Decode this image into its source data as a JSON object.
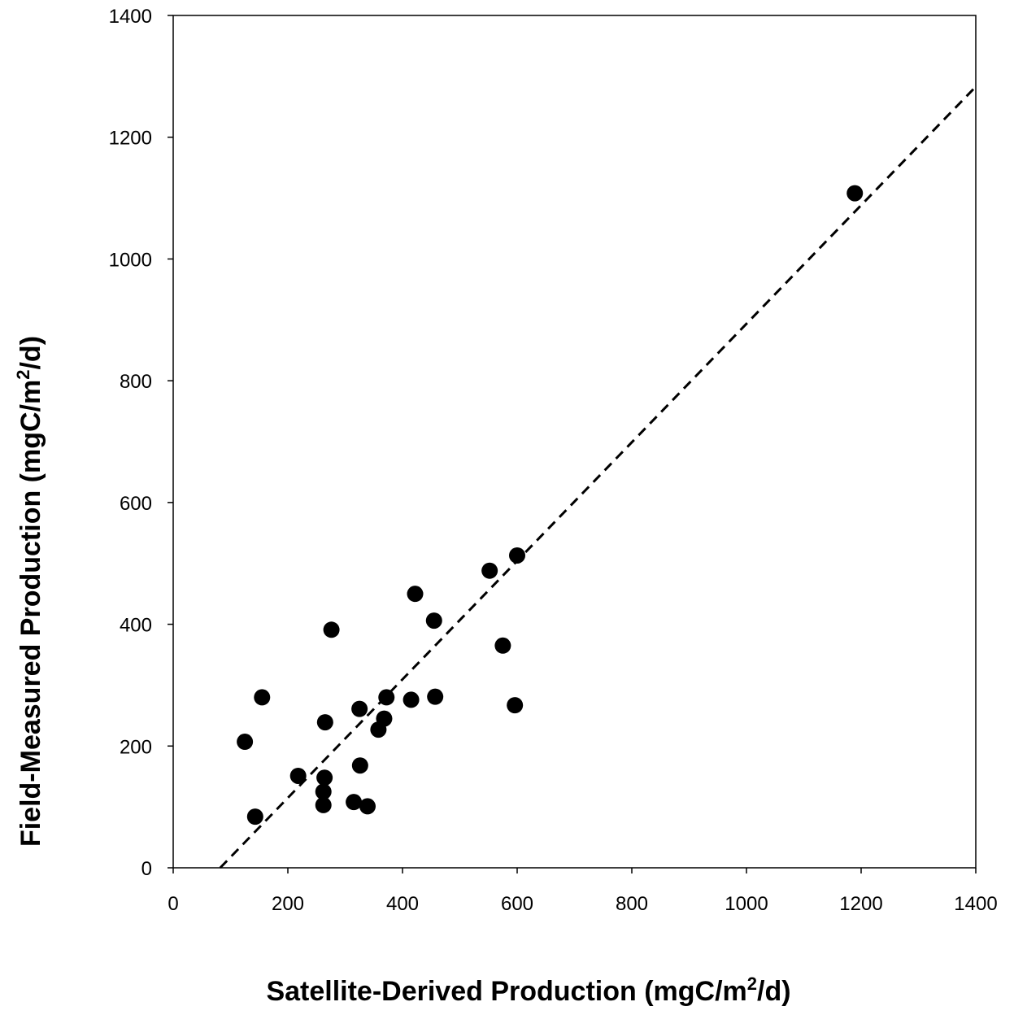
{
  "chart_data": {
    "type": "scatter",
    "title": "",
    "xlabel": "Satellite-Derived Production (mgC/m",
    "xlabel_superscript": "2",
    "xlabel_suffix": "/d)",
    "ylabel": "Field-Measured Production (mgC/m",
    "ylabel_superscript": "2",
    "ylabel_suffix": "/d)",
    "xlim": [
      0,
      1400
    ],
    "ylim": [
      0,
      1400
    ],
    "x_ticks": [
      "0",
      "200",
      "400",
      "600",
      "800",
      "1000",
      "1200",
      "1400"
    ],
    "y_ticks": [
      "0",
      "200",
      "400",
      "600",
      "800",
      "1000",
      "1200",
      "1400"
    ],
    "grid": false,
    "legend": "none",
    "series": [
      {
        "marker": "circle",
        "color": "#000000",
        "points": [
          {
            "x": 125,
            "y": 207
          },
          {
            "x": 143,
            "y": 84
          },
          {
            "x": 155,
            "y": 280
          },
          {
            "x": 218,
            "y": 151
          },
          {
            "x": 262,
            "y": 125
          },
          {
            "x": 262,
            "y": 103
          },
          {
            "x": 264,
            "y": 148
          },
          {
            "x": 265,
            "y": 239
          },
          {
            "x": 276,
            "y": 391
          },
          {
            "x": 315,
            "y": 108
          },
          {
            "x": 325,
            "y": 261
          },
          {
            "x": 326,
            "y": 168
          },
          {
            "x": 339,
            "y": 101
          },
          {
            "x": 358,
            "y": 227
          },
          {
            "x": 368,
            "y": 245
          },
          {
            "x": 372,
            "y": 280
          },
          {
            "x": 415,
            "y": 276
          },
          {
            "x": 422,
            "y": 450
          },
          {
            "x": 455,
            "y": 406
          },
          {
            "x": 457,
            "y": 281
          },
          {
            "x": 552,
            "y": 488
          },
          {
            "x": 575,
            "y": 365
          },
          {
            "x": 596,
            "y": 267
          },
          {
            "x": 600,
            "y": 513
          },
          {
            "x": 1189,
            "y": 1108
          }
        ]
      }
    ],
    "reference_line": {
      "style": "dashed",
      "color": "#000000",
      "start": {
        "x": 82,
        "y": 0
      },
      "end": {
        "x": 1400,
        "y": 1283
      }
    }
  }
}
